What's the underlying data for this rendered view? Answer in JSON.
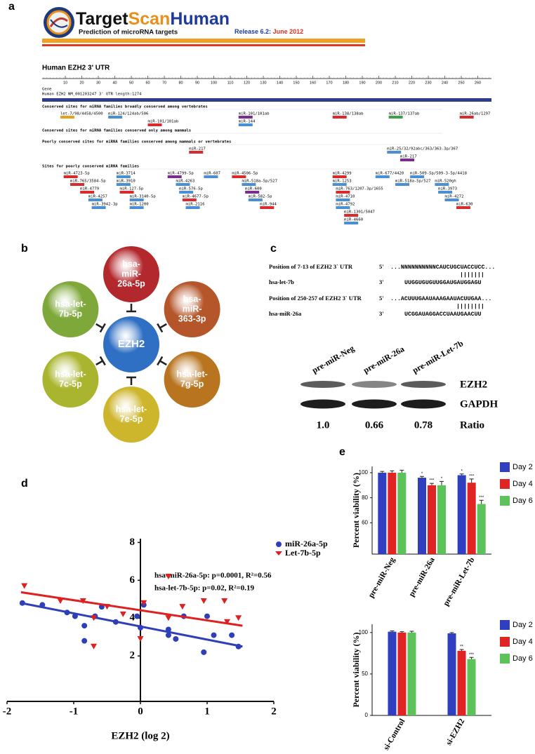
{
  "panel_labels": [
    "a",
    "b",
    "c",
    "d",
    "e"
  ],
  "targetscan": {
    "logo_parts": [
      "Target",
      "Scan",
      "Human"
    ],
    "tagline": "Prediction of microRNA targets",
    "release_label": "Release 6.2:",
    "release_date": "June 2012",
    "title": "Human EZH2  3' UTR",
    "ruler_ticks": [
      10,
      20,
      30,
      40,
      50,
      60,
      70,
      80,
      90,
      100,
      110,
      120,
      130,
      140,
      150,
      160,
      170,
      180,
      190,
      200,
      210,
      220,
      230,
      240,
      250,
      260
    ],
    "gene_header": "Gene",
    "gene_name": "Human EZH2 NM_001203247 3' UTR length:1274",
    "sections": [
      {
        "title": "Conserved sites for miRNA families broadly conserved among vertebrates",
        "sites": [
          {
            "name": "let-7/98/4458/4500",
            "pos": 7,
            "color": "#e8a020"
          },
          {
            "name": "miR-124/124ab/506",
            "pos": 36,
            "color": "#4a8fd6"
          },
          {
            "name": "miR-101/101ab",
            "pos": 60,
            "color": "#d92b2b"
          },
          {
            "name": "miR-101/101ab",
            "pos": 115,
            "color": "#7b2c8f"
          },
          {
            "name": "miR-144",
            "pos": 115,
            "color": "#4a8fd6"
          },
          {
            "name": "miR-138/138ab",
            "pos": 172,
            "color": "#d92b2b"
          },
          {
            "name": "miR-137/137ab",
            "pos": 206,
            "color": "#3fa04a"
          },
          {
            "name": "miR-26ab/1297",
            "pos": 249,
            "color": "#d92b2b"
          }
        ]
      },
      {
        "title": "Conserved sites for miRNA families conserved only among mammals",
        "sites": []
      },
      {
        "title": "Poorly conserved sites for miRNA families conserved among mammals or vertebrates",
        "sites": [
          {
            "name": "miR-217",
            "pos": 85,
            "color": "#d92b2b"
          },
          {
            "name": "miR-25/32/92abc/363/363-3p/367",
            "pos": 205,
            "color": "#4a8fd6"
          },
          {
            "name": "miR-217",
            "pos": 213,
            "color": "#7b2c8f"
          }
        ]
      },
      {
        "title": "Sites for poorly conserved miRNA families",
        "sites": [
          {
            "name": "miR-4723-5p",
            "pos": 9,
            "color": "#d92b2b"
          },
          {
            "name": "miR-765/3584-5p",
            "pos": 13,
            "color": "#d92b2b"
          },
          {
            "name": "miR-4779",
            "pos": 19,
            "color": "#d92b2b"
          },
          {
            "name": "miR-4257",
            "pos": 24,
            "color": "#4a8fd6"
          },
          {
            "name": "miR-3942-3p",
            "pos": 26,
            "color": "#4a8fd6"
          },
          {
            "name": "miR-3714",
            "pos": 41,
            "color": "#4a8fd6"
          },
          {
            "name": "miR-3910",
            "pos": 41,
            "color": "#4a8fd6"
          },
          {
            "name": "miR-127-5p",
            "pos": 43,
            "color": "#d92b2b"
          },
          {
            "name": "miR-3140-5p",
            "pos": 49,
            "color": "#4a8fd6"
          },
          {
            "name": "miR-1200",
            "pos": 49,
            "color": "#4a8fd6"
          },
          {
            "name": "miR-4799-5p",
            "pos": 72,
            "color": "#7b2c8f"
          },
          {
            "name": "miR-4263",
            "pos": 77,
            "color": "#4a8fd6"
          },
          {
            "name": "miR-576-5p",
            "pos": 79,
            "color": "#4a8fd6"
          },
          {
            "name": "miR-4677-5p",
            "pos": 81,
            "color": "#d92b2b"
          },
          {
            "name": "miR-2116",
            "pos": 83,
            "color": "#4a8fd6"
          },
          {
            "name": "miR-607",
            "pos": 94,
            "color": "#4a8fd6"
          },
          {
            "name": "miR-4506-5p",
            "pos": 111,
            "color": "#d92b2b"
          },
          {
            "name": "miR-518a-5p/527",
            "pos": 117,
            "color": "#4a8fd6"
          },
          {
            "name": "miR-600",
            "pos": 119,
            "color": "#7b2c8f"
          },
          {
            "name": "miR-582-5p",
            "pos": 121,
            "color": "#4a8fd6"
          },
          {
            "name": "miR-944",
            "pos": 128,
            "color": "#d92b2b"
          },
          {
            "name": "miR-4299",
            "pos": 172,
            "color": "#d92b2b"
          },
          {
            "name": "miR-1253",
            "pos": 172,
            "color": "#4a8fd6"
          },
          {
            "name": "miR-763/1207-3p/1655",
            "pos": 174,
            "color": "#d92b2b"
          },
          {
            "name": "miR-4710",
            "pos": 174,
            "color": "#4a8fd6"
          },
          {
            "name": "miR-4792",
            "pos": 174,
            "color": "#4a8fd6"
          },
          {
            "name": "miR-1301/5047",
            "pos": 179,
            "color": "#d92b2b"
          },
          {
            "name": "miR-4660",
            "pos": 179,
            "color": "#4a8fd6"
          },
          {
            "name": "miR-677/4420",
            "pos": 198,
            "color": "#4a8fd6"
          },
          {
            "name": "miR-518a-5p/527",
            "pos": 210,
            "color": "#4a8fd6"
          },
          {
            "name": "miR-509-5p/509-3-5p/4418",
            "pos": 219,
            "color": "#4a8fd6"
          },
          {
            "name": "miR-520gh",
            "pos": 234,
            "color": "#4a8fd6"
          },
          {
            "name": "miR-3973",
            "pos": 236,
            "color": "#4a8fd6"
          },
          {
            "name": "miR-4272",
            "pos": 240,
            "color": "#4a8fd6"
          },
          {
            "name": "miR-630",
            "pos": 247,
            "color": "#d92b2b"
          }
        ]
      }
    ]
  },
  "network": {
    "center": "EZH2",
    "center_color": "#2f6fc4",
    "nodes": [
      {
        "lines": [
          "hsa-",
          "miR-",
          "26a-5p"
        ],
        "color": "#b3282d"
      },
      {
        "lines": [
          "hsa-",
          "miR-",
          "363-3p"
        ],
        "color": "#b5552a"
      },
      {
        "lines": [
          "hsa-let-",
          "7g-5p"
        ],
        "color": "#b8741f"
      },
      {
        "lines": [
          "hsa-let-",
          "7e-5p"
        ],
        "color": "#cdb52c"
      },
      {
        "lines": [
          "hsa-let-",
          "7c-5p"
        ],
        "color": "#aab52f"
      },
      {
        "lines": [
          "hsa-let-",
          "7b-5p"
        ],
        "color": "#7fa83a"
      }
    ]
  },
  "alignment": {
    "pairs": [
      {
        "utr_label": "Position of 7-13 of EZH2 3` UTR",
        "utr_end": "5'",
        "utr_seq": "...NNNNNNNNNNCAUCUGCUACCUCC...",
        "match": "|||||||",
        "mirna_label": "hsa-let-7b",
        "mirna_end": "3'",
        "mirna_seq": "UUGGUGUGUUGGAUGAUGGAGU"
      },
      {
        "utr_label": "Position of 250-257 of EZH2 3` UTR",
        "utr_end": "5'",
        "utr_seq": "...ACUUUGAAUAAAGAAUACUUGAA...",
        "match": "||||||||",
        "mirna_label": "hsa-miR-26a",
        "mirna_end": "3'",
        "mirna_seq": "UCGGAUAGGACCUAAUGAACUU"
      }
    ]
  },
  "western": {
    "lanes": [
      "pre-miR-Neg",
      "pre-miR-26a",
      "pre-miR-Let-7b"
    ],
    "proteins": [
      "EZH2",
      "GAPDH"
    ],
    "ratios": [
      "1.0",
      "0.66",
      "0.78"
    ],
    "ratio_label": "Ratio"
  },
  "chart_data": [
    {
      "type": "scatter",
      "xlabel": "EZH2 (log 2)",
      "xlim": [
        -2,
        2
      ],
      "xticks": [
        -2,
        -1,
        0,
        1,
        2
      ],
      "ylim": [
        -0.4,
        8.2
      ],
      "yticks": [
        2,
        4,
        6,
        8
      ],
      "annotations": [
        "hsa-miR-26a-5p:  p=0.0001, R²=0.56",
        "hsa-let-7b-5p:  p=0.02, R²=0.19"
      ],
      "series": [
        {
          "name": "miR-26a-5p",
          "color": "#2e3fb8",
          "marker": "circle",
          "x": [
            -1.77,
            -1.47,
            -1.1,
            -0.98,
            -0.84,
            -0.84,
            -0.68,
            -0.58,
            -0.37,
            -0.05,
            0,
            0.05,
            0.42,
            0.42,
            0.53,
            0.65,
            0.95,
            1.0,
            1.1,
            1.37,
            1.47
          ],
          "values": [
            4.8,
            4.7,
            4.3,
            4.1,
            3.6,
            2.8,
            4.1,
            4.6,
            3.8,
            4.1,
            3.5,
            4.7,
            3.4,
            3.1,
            2.9,
            4.1,
            2.2,
            4.1,
            3.1,
            3.1,
            2.5
          ],
          "fit": {
            "x": [
              -1.79,
              1.53
            ],
            "values": [
              4.8,
              2.5
            ]
          }
        },
        {
          "name": "Let-7b-5p",
          "color": "#e02020",
          "marker": "triangle",
          "x": [
            -1.74,
            -1.2,
            -0.86,
            -0.7,
            -0.7,
            -0.5,
            -0.26,
            0,
            0.05,
            0.42,
            0.42,
            0.63,
            0.95,
            1.26,
            1.3,
            1.47
          ],
          "values": [
            5.7,
            4.9,
            4.9,
            4.0,
            2.5,
            4.6,
            4.2,
            2.9,
            4.8,
            6.2,
            4.0,
            4.6,
            4.9,
            4.9,
            3.8,
            4.0
          ],
          "fit": {
            "x": [
              -1.79,
              1.53
            ],
            "values": [
              5.37,
              3.6
            ]
          }
        }
      ]
    },
    {
      "type": "bar",
      "ylabel": "Percent viability (%)",
      "categories": [
        "pre-miR-Neg",
        "pre-miR-26a",
        "pre-miR-Let-7b"
      ],
      "ylim": [
        35,
        105
      ],
      "yticks": [
        60,
        80,
        100
      ],
      "series": [
        {
          "name": "Day 2",
          "color": "#2f3fbf",
          "values": [
            100,
            96,
            98
          ],
          "errors": [
            1,
            1,
            1
          ],
          "value_labels": [
            null,
            "*",
            "*"
          ]
        },
        {
          "name": "Day 4",
          "color": "#e02424",
          "values": [
            100,
            90,
            92
          ],
          "errors": [
            1.5,
            1.5,
            3
          ],
          "value_labels": [
            null,
            "***",
            "***"
          ]
        },
        {
          "name": "Day 6",
          "color": "#5cc25a",
          "values": [
            100,
            90,
            75
          ],
          "errors": [
            2,
            3,
            3
          ],
          "value_labels": [
            null,
            "*",
            "***"
          ]
        }
      ]
    },
    {
      "type": "bar",
      "ylabel": "Percent viability (%)",
      "categories": [
        "si-Control",
        "si-EZH2"
      ],
      "ylim": [
        0,
        110
      ],
      "yticks": [
        0,
        50,
        100
      ],
      "series": [
        {
          "name": "Day 2",
          "color": "#2f3fbf",
          "values": [
            101,
            99
          ],
          "errors": [
            1,
            1
          ],
          "value_labels": [
            null,
            null
          ]
        },
        {
          "name": "Day 4",
          "color": "#e02424",
          "values": [
            100,
            78
          ],
          "errors": [
            1,
            1.5
          ],
          "value_labels": [
            null,
            "**"
          ]
        },
        {
          "name": "Day 6",
          "color": "#5cc25a",
          "values": [
            100,
            68
          ],
          "errors": [
            1.5,
            2
          ],
          "value_labels": [
            null,
            "***"
          ]
        }
      ]
    }
  ]
}
